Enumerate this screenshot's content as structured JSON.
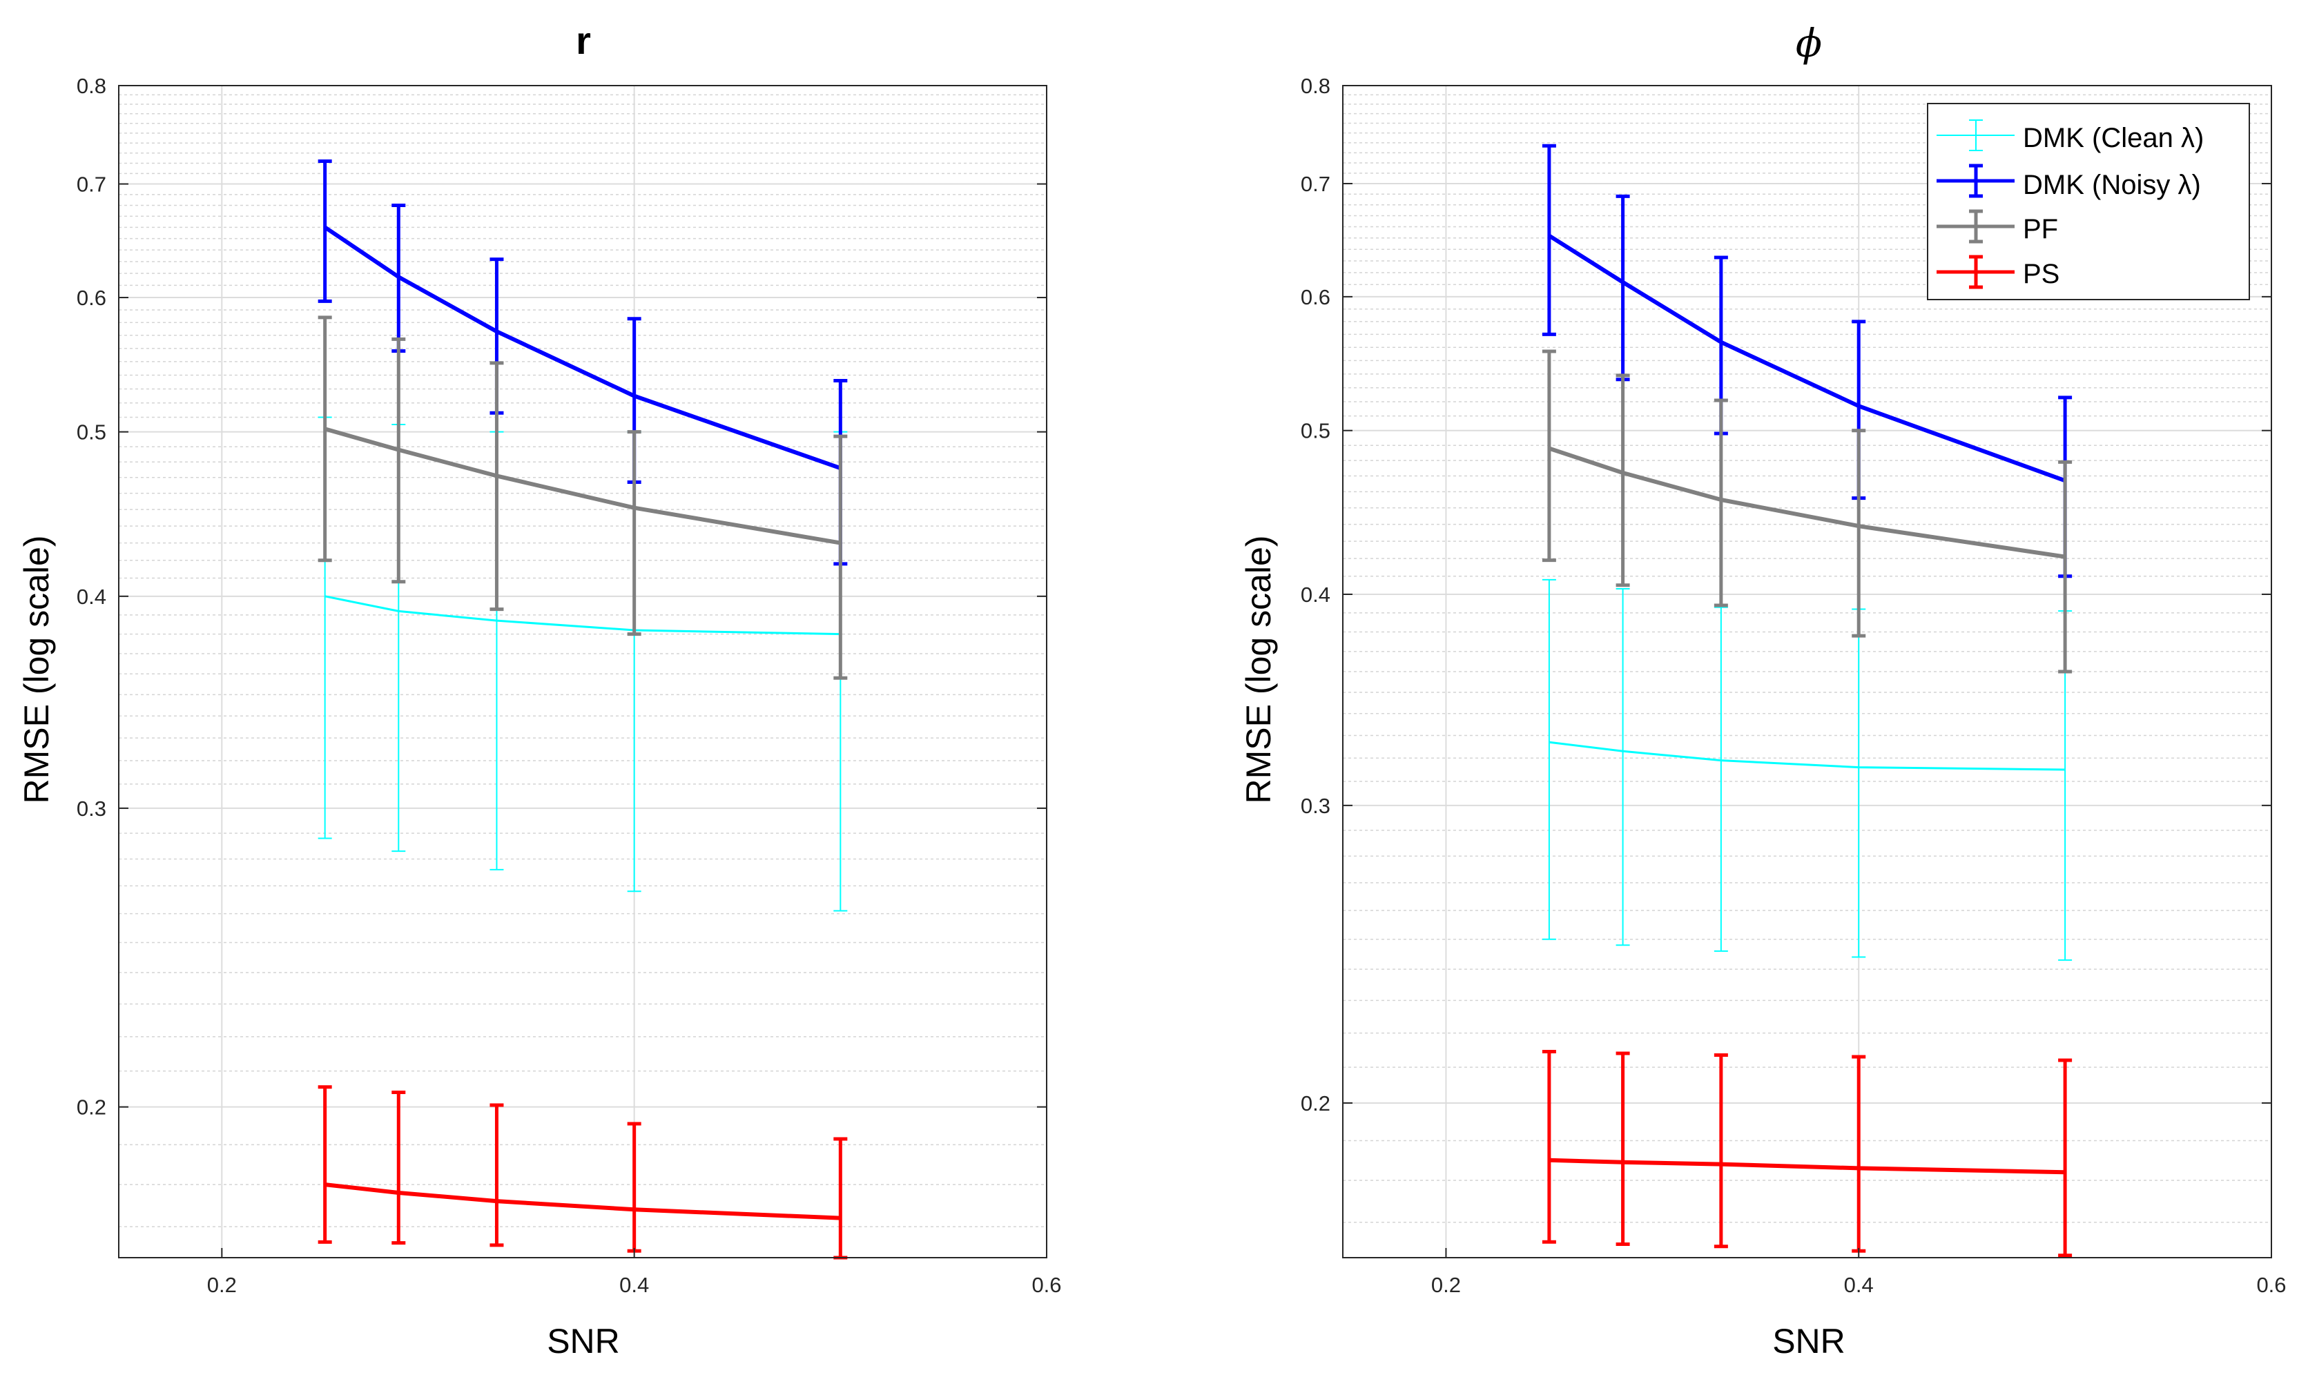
{
  "chart_data": [
    {
      "type": "line",
      "title": "r",
      "xlabel": "SNR",
      "ylabel": "RMSE (log scale)",
      "yscale": "log",
      "xlim": [
        0.15,
        0.6
      ],
      "ylim": [
        0.163,
        0.8
      ],
      "xticks": [
        0.2,
        0.4,
        0.6
      ],
      "yticks": [
        0.2,
        0.3,
        0.4,
        0.5,
        0.6,
        0.7,
        0.8
      ],
      "grid": true,
      "x": [
        0.25,
        0.2857,
        0.3333,
        0.4,
        0.5
      ],
      "series": [
        {
          "name": "DMK (Clean λ)",
          "color": "#00FFFF",
          "width": 2,
          "values": [
            0.4,
            0.392,
            0.387,
            0.382,
            0.38
          ],
          "lower": [
            0.288,
            0.283,
            0.276,
            0.268,
            0.261
          ],
          "upper": [
            0.51,
            0.505,
            0.5,
            0.5,
            0.5
          ]
        },
        {
          "name": "DMK (Noisy λ)",
          "color": "#0000FF",
          "width": 5,
          "values": [
            0.66,
            0.617,
            0.573,
            0.525,
            0.476
          ],
          "lower": [
            0.597,
            0.558,
            0.513,
            0.467,
            0.418
          ],
          "upper": [
            0.722,
            0.68,
            0.632,
            0.583,
            0.536
          ]
        },
        {
          "name": "PF",
          "color": "#808080",
          "width": 5,
          "values": [
            0.502,
            0.488,
            0.471,
            0.451,
            0.43
          ],
          "lower": [
            0.42,
            0.408,
            0.393,
            0.38,
            0.358
          ],
          "upper": [
            0.584,
            0.567,
            0.549,
            0.5,
            0.497
          ]
        },
        {
          "name": "PS",
          "color": "#FF0000",
          "width": 5,
          "values": [
            0.18,
            0.178,
            0.176,
            0.174,
            0.172
          ],
          "lower": [
            0.1665,
            0.1663,
            0.1658,
            0.1645,
            0.163
          ],
          "upper": [
            0.2055,
            0.204,
            0.2005,
            0.1955,
            0.1915
          ]
        }
      ]
    },
    {
      "type": "line",
      "title": "ϕ",
      "xlabel": "SNR",
      "ylabel": "RMSE (log scale)",
      "yscale": "log",
      "xlim": [
        0.15,
        0.6
      ],
      "ylim": [
        0.162,
        0.8
      ],
      "xticks": [
        0.2,
        0.4,
        0.6
      ],
      "yticks": [
        0.2,
        0.3,
        0.4,
        0.5,
        0.6,
        0.7,
        0.8
      ],
      "grid": true,
      "legend": "top-right",
      "x": [
        0.25,
        0.2857,
        0.3333,
        0.4,
        0.5
      ],
      "series": [
        {
          "name": "DMK (Clean λ)",
          "color": "#00FFFF",
          "width": 2,
          "values": [
            0.327,
            0.323,
            0.319,
            0.316,
            0.315
          ],
          "lower": [
            0.25,
            0.248,
            0.246,
            0.244,
            0.243
          ],
          "upper": [
            0.408,
            0.403,
            0.393,
            0.392,
            0.391
          ]
        },
        {
          "name": "DMK (Noisy λ)",
          "color": "#0000FF",
          "width": 5,
          "values": [
            0.652,
            0.612,
            0.564,
            0.517,
            0.467
          ],
          "lower": [
            0.57,
            0.536,
            0.498,
            0.456,
            0.41
          ],
          "upper": [
            0.737,
            0.688,
            0.633,
            0.58,
            0.523
          ]
        },
        {
          "name": "PF",
          "color": "#808080",
          "width": 5,
          "values": [
            0.488,
            0.472,
            0.455,
            0.439,
            0.421
          ],
          "lower": [
            0.419,
            0.405,
            0.394,
            0.378,
            0.36
          ],
          "upper": [
            0.557,
            0.539,
            0.521,
            0.5,
            0.479
          ]
        },
        {
          "name": "PS",
          "color": "#FF0000",
          "width": 5,
          "values": [
            0.185,
            0.1845,
            0.184,
            0.183,
            0.182
          ],
          "lower": [
            0.1655,
            0.165,
            0.1645,
            0.1635,
            0.1625
          ],
          "upper": [
            0.2145,
            0.214,
            0.2135,
            0.213,
            0.212
          ]
        }
      ]
    }
  ]
}
